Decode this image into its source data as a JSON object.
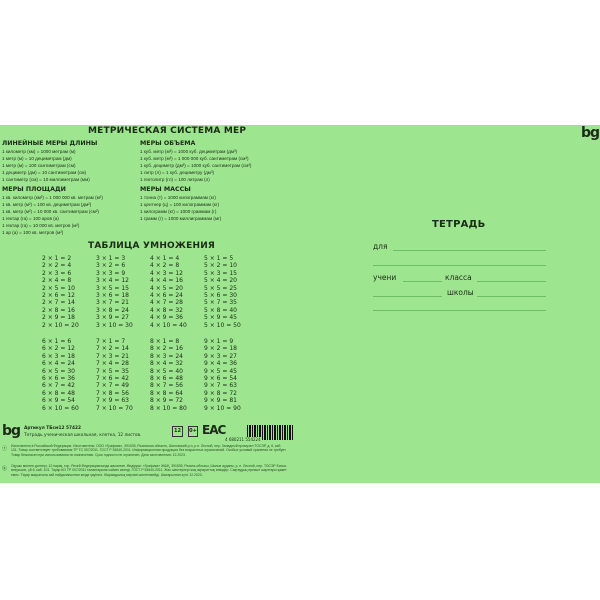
{
  "metric": {
    "title": "МЕТРИЧЕСКАЯ СИСТЕМА МЕР",
    "length": {
      "title": "ЛИНЕЙНЫЕ МЕРЫ ДЛИНЫ",
      "lines": [
        "1 километр (км) = 1000 метрам (м)",
        "1 метр (м) = 10 дециметрам (дм)",
        "1 метр (м) = 100 сантиметрам (см)",
        "1 дециметр (дм) = 10 сантиметрам (см)",
        "1 сантиметр (см) = 10 миллиметрам (мм)"
      ]
    },
    "volume": {
      "title": "МЕРЫ ОБЪЕМА",
      "lines": [
        "1 куб. метр (м³) = 1000 куб. дециметрам (дм³)",
        "1 куб. метр (м³) = 1 000 000 куб. сантиметрам (см³)",
        "1 куб. дециметр (дм³) = 1000 куб. сантиметрам (см³)",
        "1 литр (л) = 1 куб. дециметру (дм³)",
        "1 гектолитр (гл) = 100 литрам (л)"
      ]
    },
    "area": {
      "title": "МЕРЫ ПЛОЩАДИ",
      "lines": [
        "1 кв. километр (км²) = 1 000 000 кв. метрам (м²)",
        "1 кв. метр (м²) = 100 кв. дециметрам (дм²)",
        "1 кв. метр (м²) = 10 000 кв. сантиметрам (см²)",
        "1 гектар (га) = 100 аров (а)",
        "1 гектар (га) = 10 000 кв. метров (м²)",
        "1 ар (а) = 100 кв. метров (м²)"
      ]
    },
    "mass": {
      "title": "МЕРЫ МАССЫ",
      "lines": [
        "1 тонна (т) = 1000 килограммам (кг)",
        "1 центнер (ц) = 100 килограммам (кг)",
        "1 килограмм (кг) = 1000 граммам (г)",
        "1 грамм (г) = 1000 миллиграммам (мг)"
      ]
    }
  },
  "mult": {
    "title": "ТАБЛИЦА УМНОЖЕНИЯ",
    "columns": [
      [
        "2 × 1 = 2",
        "2 × 2 = 4",
        "2 × 3 = 6",
        "2 × 4 = 8",
        "2 × 5 = 10",
        "2 × 6 = 12",
        "2 × 7 = 14",
        "2 × 8 = 16",
        "2 × 9 = 18",
        "2 × 10 = 20"
      ],
      [
        "3 × 1 = 3",
        "3 × 2 = 6",
        "3 × 3 = 9",
        "3 × 4 = 12",
        "3 × 5 = 15",
        "3 × 6 = 18",
        "3 × 7 = 21",
        "3 × 8 = 24",
        "3 × 9 = 27",
        "3 × 10 = 30"
      ],
      [
        "4 × 1 = 4",
        "4 × 2 = 8",
        "4 × 3 = 12",
        "4 × 4 = 16",
        "4 × 5 = 20",
        "4 × 6 = 24",
        "4 × 7 = 28",
        "4 × 8 = 32",
        "4 × 9 = 36",
        "4 × 10 = 40"
      ],
      [
        "5 × 1 = 5",
        "5 × 2 = 10",
        "5 × 3 = 15",
        "5 × 4 = 20",
        "5 × 5 = 25",
        "5 × 6 = 30",
        "5 × 7 = 35",
        "5 × 8 = 40",
        "5 × 9 = 45",
        "5 × 10 = 50"
      ],
      [
        "6 × 1 = 6",
        "6 × 2 = 12",
        "6 × 3 = 18",
        "6 × 4 = 24",
        "6 × 5 = 30",
        "6 × 6 = 36",
        "6 × 7 = 42",
        "6 × 8 = 48",
        "6 × 9 = 54",
        "6 × 10 = 60"
      ],
      [
        "7 × 1 = 7",
        "7 × 2 = 14",
        "7 × 3 = 21",
        "7 × 4 = 28",
        "7 × 5 = 35",
        "7 × 6 = 42",
        "7 × 7 = 49",
        "7 × 8 = 56",
        "7 × 9 = 63",
        "7 × 10 = 70"
      ],
      [
        "8 × 1 = 8",
        "8 × 2 = 16",
        "8 × 3 = 24",
        "8 × 4 = 32",
        "8 × 5 = 40",
        "8 × 6 = 48",
        "8 × 7 = 56",
        "8 × 8 = 64",
        "8 × 9 = 72",
        "8 × 10 = 80"
      ],
      [
        "9 × 1 = 9",
        "9 × 2 = 18",
        "9 × 3 = 27",
        "9 × 4 = 36",
        "9 × 5 = 45",
        "9 × 6 = 54",
        "9 × 7 = 63",
        "9 × 8 = 72",
        "9 × 9 = 81",
        "9 × 10 = 90"
      ]
    ]
  },
  "brand": {
    "logo": "bg"
  },
  "notebook": {
    "title": "ТЕТРАДЬ",
    "for": "для",
    "student": "учени",
    "class": "класса",
    "school": "школы"
  },
  "footer": {
    "article": "Артикул ТБсм12 57422",
    "description": "Тетрадь ученическая школьная, клетка, 12 листов.",
    "sheets": "12",
    "age": "0+",
    "eac": "EAC",
    "barcode": "4 680211 554224",
    "legal_ru": "Изготовлено в Российской Федерации. Изготовитель: ООО «Графика», 391539, Рязанская область, Шиловский р-н, р.п. Лесной, пер. Западный промузел ТОСЭР, д. 6, каб. 101. Товар соответствует требованиям ТР ТС 007/2011. ГОСТ Р 54540-2011. Информационная продукция без возрастных ограничений. Особых условий хранения не требует. Товар безопасен при использовании по назначению. Срок годности не ограничен. Дата изготовления: 12.2023.",
    "legal_kz": "Оқушы мектеп дәптері, 12 парақ, тор. Ресей Федерациясында жасалған. Өндіруші: «Графика» ЖШҚ, 391539, Рязань облысы, Шилов ауданы, р. п. Лесной, пер. ТОСЭР Батыс өнеркәсіп, үй 6, каб. 101. Тауар КО ТР 007/2011 талаптарына сәйкес келеді. ГОСТ Р 54540-2011. Жас шектеулері жоқ ақпараттық өнімдер. Сақтаудың ерекше шарттары қажет емес. Тауар мақсатына сай пайдаланылған кезде қауіпсіз. Жарамдылық мерзімі шектелмейді. Шығарылған күні: 12.2023."
  }
}
